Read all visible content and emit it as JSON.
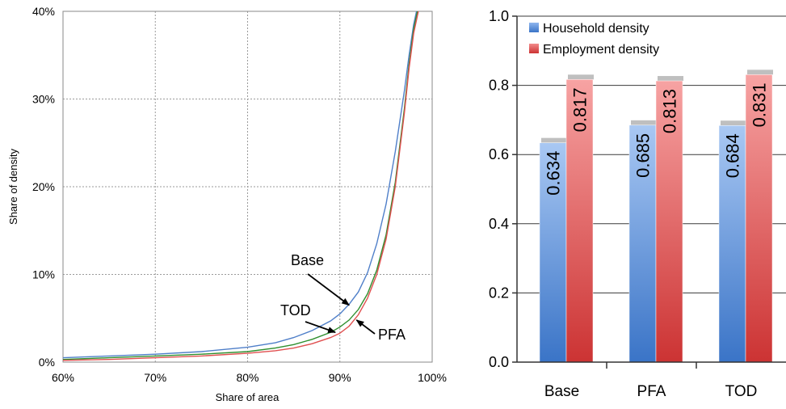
{
  "chart_data": [
    {
      "type": "line",
      "xlabel": "Share of area",
      "ylabel": "Share of density",
      "xlim": [
        60,
        100
      ],
      "ylim": [
        0,
        40
      ],
      "x_tick_labels": [
        "60%",
        "70%",
        "80%",
        "90%",
        "100%"
      ],
      "y_tick_labels": [
        "0%",
        "10%",
        "20%",
        "30%",
        "40%"
      ],
      "grid": true,
      "series": [
        {
          "name": "Base",
          "color": "#4f7fc9",
          "x": [
            60,
            65,
            70,
            75,
            80,
            83,
            85,
            87,
            89,
            90,
            91,
            92,
            93,
            94,
            95,
            96,
            96.5,
            97,
            97.5,
            98,
            98.3
          ],
          "y": [
            0.5,
            0.7,
            0.9,
            1.2,
            1.7,
            2.2,
            2.8,
            3.6,
            4.7,
            5.5,
            6.6,
            8.0,
            10.2,
            13.5,
            18.0,
            24.0,
            27.5,
            31.0,
            35.0,
            38.5,
            40
          ]
        },
        {
          "name": "TOD",
          "color": "#2f8f2f",
          "x": [
            60,
            65,
            70,
            75,
            80,
            83,
            85,
            87,
            89,
            90,
            91,
            92,
            93,
            94,
            95,
            96,
            97,
            97.5,
            98,
            98.4
          ],
          "y": [
            0.3,
            0.5,
            0.7,
            0.9,
            1.2,
            1.6,
            2.0,
            2.6,
            3.4,
            4.0,
            4.8,
            6.0,
            7.8,
            10.5,
            14.5,
            20.5,
            29.0,
            34.0,
            38.0,
            40
          ]
        },
        {
          "name": "PFA",
          "color": "#e05050",
          "x": [
            60,
            65,
            70,
            75,
            80,
            83,
            85,
            87,
            89,
            90,
            91,
            92,
            93,
            94,
            95,
            96,
            97,
            97.5,
            98,
            98.5
          ],
          "y": [
            0.2,
            0.3,
            0.5,
            0.7,
            1.0,
            1.3,
            1.6,
            2.1,
            2.8,
            3.3,
            4.1,
            5.4,
            7.3,
            10.0,
            14.0,
            20.0,
            28.5,
            33.5,
            37.5,
            40
          ]
        }
      ],
      "annotations": [
        {
          "text": "Base",
          "x": 91.0,
          "y": 6.5
        },
        {
          "text": "TOD",
          "x": 89.5,
          "y": 3.4
        },
        {
          "text": "PFA",
          "x": 91.8,
          "y": 4.8
        }
      ]
    },
    {
      "type": "bar",
      "categories": [
        "Base",
        "PFA",
        "TOD"
      ],
      "ylim": [
        0,
        1.0
      ],
      "y_tick_labels": [
        "0.0",
        "0.2",
        "0.4",
        "0.6",
        "0.8",
        "1.0"
      ],
      "grid": true,
      "legend_position": "top-left",
      "series": [
        {
          "name": "Household density",
          "color": "#5b8fdc",
          "values": [
            0.634,
            0.685,
            0.684
          ],
          "labels": [
            "0.634",
            "0.685",
            "0.684"
          ]
        },
        {
          "name": "Employment density",
          "color": "#e06060",
          "values": [
            0.817,
            0.813,
            0.831
          ],
          "labels": [
            "0.817",
            "0.813",
            "0.831"
          ]
        }
      ]
    }
  ]
}
